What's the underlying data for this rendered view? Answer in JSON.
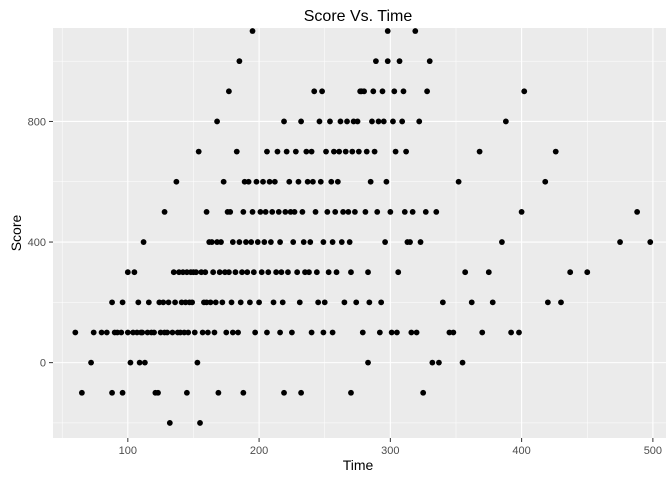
{
  "chart_data": {
    "type": "scatter",
    "title": "Score Vs. Time",
    "xlabel": "Time",
    "ylabel": "Score",
    "xlim": [
      43,
      510
    ],
    "ylim": [
      -250,
      1110
    ],
    "xticks": [
      100,
      200,
      300,
      400,
      500
    ],
    "yticks": [
      0,
      400,
      800
    ],
    "xtick_labels": [
      "100",
      "200",
      "300",
      "400",
      "500"
    ],
    "ytick_labels": [
      "0",
      "400",
      "800"
    ],
    "grid": true,
    "background": "#ebebeb",
    "point_color": "#000000",
    "points": [
      [
        60,
        100
      ],
      [
        65,
        -100
      ],
      [
        72,
        0
      ],
      [
        74,
        100
      ],
      [
        80,
        100
      ],
      [
        84,
        100
      ],
      [
        88,
        200
      ],
      [
        88,
        -100
      ],
      [
        90,
        100
      ],
      [
        92,
        100
      ],
      [
        95,
        100
      ],
      [
        96,
        200
      ],
      [
        96,
        -100
      ],
      [
        100,
        300
      ],
      [
        100,
        100
      ],
      [
        102,
        0
      ],
      [
        104,
        100
      ],
      [
        105,
        300
      ],
      [
        107,
        100
      ],
      [
        108,
        200
      ],
      [
        109,
        0
      ],
      [
        110,
        100
      ],
      [
        111,
        100
      ],
      [
        112,
        400
      ],
      [
        113,
        0
      ],
      [
        115,
        100
      ],
      [
        116,
        200
      ],
      [
        118,
        100
      ],
      [
        120,
        100
      ],
      [
        121,
        -100
      ],
      [
        123,
        -100
      ],
      [
        124,
        200
      ],
      [
        125,
        100
      ],
      [
        127,
        200
      ],
      [
        128,
        100
      ],
      [
        128,
        500
      ],
      [
        130,
        100
      ],
      [
        131,
        200
      ],
      [
        132,
        -200
      ],
      [
        134,
        100
      ],
      [
        135,
        300
      ],
      [
        136,
        200
      ],
      [
        137,
        600
      ],
      [
        138,
        100
      ],
      [
        139,
        300
      ],
      [
        140,
        100
      ],
      [
        141,
        200
      ],
      [
        142,
        300
      ],
      [
        143,
        100
      ],
      [
        144,
        200
      ],
      [
        145,
        300
      ],
      [
        145,
        -100
      ],
      [
        146,
        100
      ],
      [
        147,
        200
      ],
      [
        148,
        300
      ],
      [
        149,
        200
      ],
      [
        150,
        300
      ],
      [
        151,
        100
      ],
      [
        152,
        300
      ],
      [
        153,
        0
      ],
      [
        154,
        700
      ],
      [
        155,
        -200
      ],
      [
        156,
        300
      ],
      [
        157,
        100
      ],
      [
        158,
        200
      ],
      [
        159,
        300
      ],
      [
        160,
        200
      ],
      [
        160,
        500
      ],
      [
        161,
        100
      ],
      [
        162,
        400
      ],
      [
        163,
        200
      ],
      [
        164,
        400
      ],
      [
        165,
        300
      ],
      [
        166,
        100
      ],
      [
        167,
        200
      ],
      [
        168,
        800
      ],
      [
        168,
        400
      ],
      [
        169,
        -100
      ],
      [
        170,
        300
      ],
      [
        171,
        400
      ],
      [
        172,
        200
      ],
      [
        173,
        600
      ],
      [
        174,
        300
      ],
      [
        175,
        100
      ],
      [
        176,
        500
      ],
      [
        177,
        900
      ],
      [
        177,
        300
      ],
      [
        178,
        500
      ],
      [
        179,
        200
      ],
      [
        180,
        100
      ],
      [
        180,
        400
      ],
      [
        182,
        300
      ],
      [
        183,
        700
      ],
      [
        184,
        100
      ],
      [
        185,
        1000
      ],
      [
        185,
        400
      ],
      [
        186,
        200
      ],
      [
        187,
        300
      ],
      [
        188,
        500
      ],
      [
        188,
        -100
      ],
      [
        189,
        600
      ],
      [
        190,
        400
      ],
      [
        191,
        300
      ],
      [
        192,
        600
      ],
      [
        193,
        200
      ],
      [
        194,
        400
      ],
      [
        195,
        1100
      ],
      [
        195,
        500
      ],
      [
        196,
        300
      ],
      [
        197,
        100
      ],
      [
        198,
        600
      ],
      [
        199,
        400
      ],
      [
        200,
        200
      ],
      [
        201,
        500
      ],
      [
        202,
        300
      ],
      [
        203,
        600
      ],
      [
        204,
        400
      ],
      [
        205,
        500
      ],
      [
        206,
        700
      ],
      [
        206,
        100
      ],
      [
        207,
        300
      ],
      [
        208,
        600
      ],
      [
        209,
        400
      ],
      [
        210,
        500
      ],
      [
        211,
        200
      ],
      [
        212,
        600
      ],
      [
        213,
        300
      ],
      [
        214,
        700
      ],
      [
        215,
        500
      ],
      [
        216,
        100
      ],
      [
        216,
        400
      ],
      [
        217,
        300
      ],
      [
        218,
        200
      ],
      [
        219,
        -100
      ],
      [
        219,
        800
      ],
      [
        220,
        500
      ],
      [
        221,
        700
      ],
      [
        222,
        300
      ],
      [
        223,
        600
      ],
      [
        224,
        500
      ],
      [
        225,
        100
      ],
      [
        226,
        400
      ],
      [
        227,
        500
      ],
      [
        228,
        700
      ],
      [
        229,
        300
      ],
      [
        230,
        600
      ],
      [
        231,
        200
      ],
      [
        232,
        800
      ],
      [
        232,
        -100
      ],
      [
        233,
        500
      ],
      [
        234,
        400
      ],
      [
        235,
        300
      ],
      [
        236,
        700
      ],
      [
        237,
        600
      ],
      [
        238,
        300
      ],
      [
        239,
        400
      ],
      [
        240,
        100
      ],
      [
        240,
        700
      ],
      [
        241,
        600
      ],
      [
        242,
        900
      ],
      [
        243,
        500
      ],
      [
        244,
        300
      ],
      [
        245,
        200
      ],
      [
        246,
        800
      ],
      [
        247,
        600
      ],
      [
        248,
        900
      ],
      [
        249,
        100
      ],
      [
        249,
        400
      ],
      [
        250,
        200
      ],
      [
        251,
        700
      ],
      [
        252,
        500
      ],
      [
        253,
        300
      ],
      [
        254,
        800
      ],
      [
        255,
        600
      ],
      [
        256,
        100
      ],
      [
        256,
        400
      ],
      [
        257,
        700
      ],
      [
        258,
        500
      ],
      [
        259,
        300
      ],
      [
        260,
        600
      ],
      [
        261,
        700
      ],
      [
        262,
        800
      ],
      [
        263,
        400
      ],
      [
        264,
        500
      ],
      [
        265,
        200
      ],
      [
        266,
        700
      ],
      [
        267,
        800
      ],
      [
        268,
        500
      ],
      [
        269,
        400
      ],
      [
        270,
        -100
      ],
      [
        270,
        300
      ],
      [
        271,
        700
      ],
      [
        272,
        800
      ],
      [
        273,
        500
      ],
      [
        274,
        200
      ],
      [
        275,
        800
      ],
      [
        276,
        700
      ],
      [
        277,
        900
      ],
      [
        278,
        900
      ],
      [
        279,
        100
      ],
      [
        280,
        900
      ],
      [
        281,
        500
      ],
      [
        282,
        700
      ],
      [
        283,
        0
      ],
      [
        283,
        300
      ],
      [
        284,
        200
      ],
      [
        285,
        600
      ],
      [
        286,
        800
      ],
      [
        287,
        900
      ],
      [
        288,
        700
      ],
      [
        289,
        1000
      ],
      [
        290,
        500
      ],
      [
        291,
        800
      ],
      [
        292,
        100
      ],
      [
        293,
        200
      ],
      [
        294,
        900
      ],
      [
        295,
        800
      ],
      [
        296,
        400
      ],
      [
        297,
        600
      ],
      [
        298,
        1100
      ],
      [
        298,
        1000
      ],
      [
        300,
        500
      ],
      [
        301,
        100
      ],
      [
        302,
        800
      ],
      [
        303,
        900
      ],
      [
        304,
        700
      ],
      [
        305,
        100
      ],
      [
        306,
        300
      ],
      [
        307,
        1000
      ],
      [
        309,
        800
      ],
      [
        310,
        900
      ],
      [
        311,
        500
      ],
      [
        312,
        700
      ],
      [
        313,
        400
      ],
      [
        315,
        400
      ],
      [
        316,
        100
      ],
      [
        317,
        500
      ],
      [
        319,
        1100
      ],
      [
        320,
        100
      ],
      [
        322,
        800
      ],
      [
        323,
        400
      ],
      [
        325,
        -100
      ],
      [
        327,
        500
      ],
      [
        328,
        900
      ],
      [
        330,
        1000
      ],
      [
        332,
        0
      ],
      [
        335,
        500
      ],
      [
        337,
        0
      ],
      [
        340,
        200
      ],
      [
        345,
        100
      ],
      [
        348,
        100
      ],
      [
        352,
        600
      ],
      [
        355,
        0
      ],
      [
        357,
        300
      ],
      [
        362,
        200
      ],
      [
        368,
        700
      ],
      [
        370,
        100
      ],
      [
        375,
        300
      ],
      [
        378,
        200
      ],
      [
        385,
        400
      ],
      [
        388,
        800
      ],
      [
        392,
        100
      ],
      [
        398,
        100
      ],
      [
        400,
        500
      ],
      [
        402,
        900
      ],
      [
        418,
        600
      ],
      [
        420,
        200
      ],
      [
        426,
        700
      ],
      [
        430,
        200
      ],
      [
        437,
        300
      ],
      [
        450,
        300
      ],
      [
        475,
        400
      ],
      [
        488,
        500
      ],
      [
        498,
        400
      ]
    ]
  }
}
